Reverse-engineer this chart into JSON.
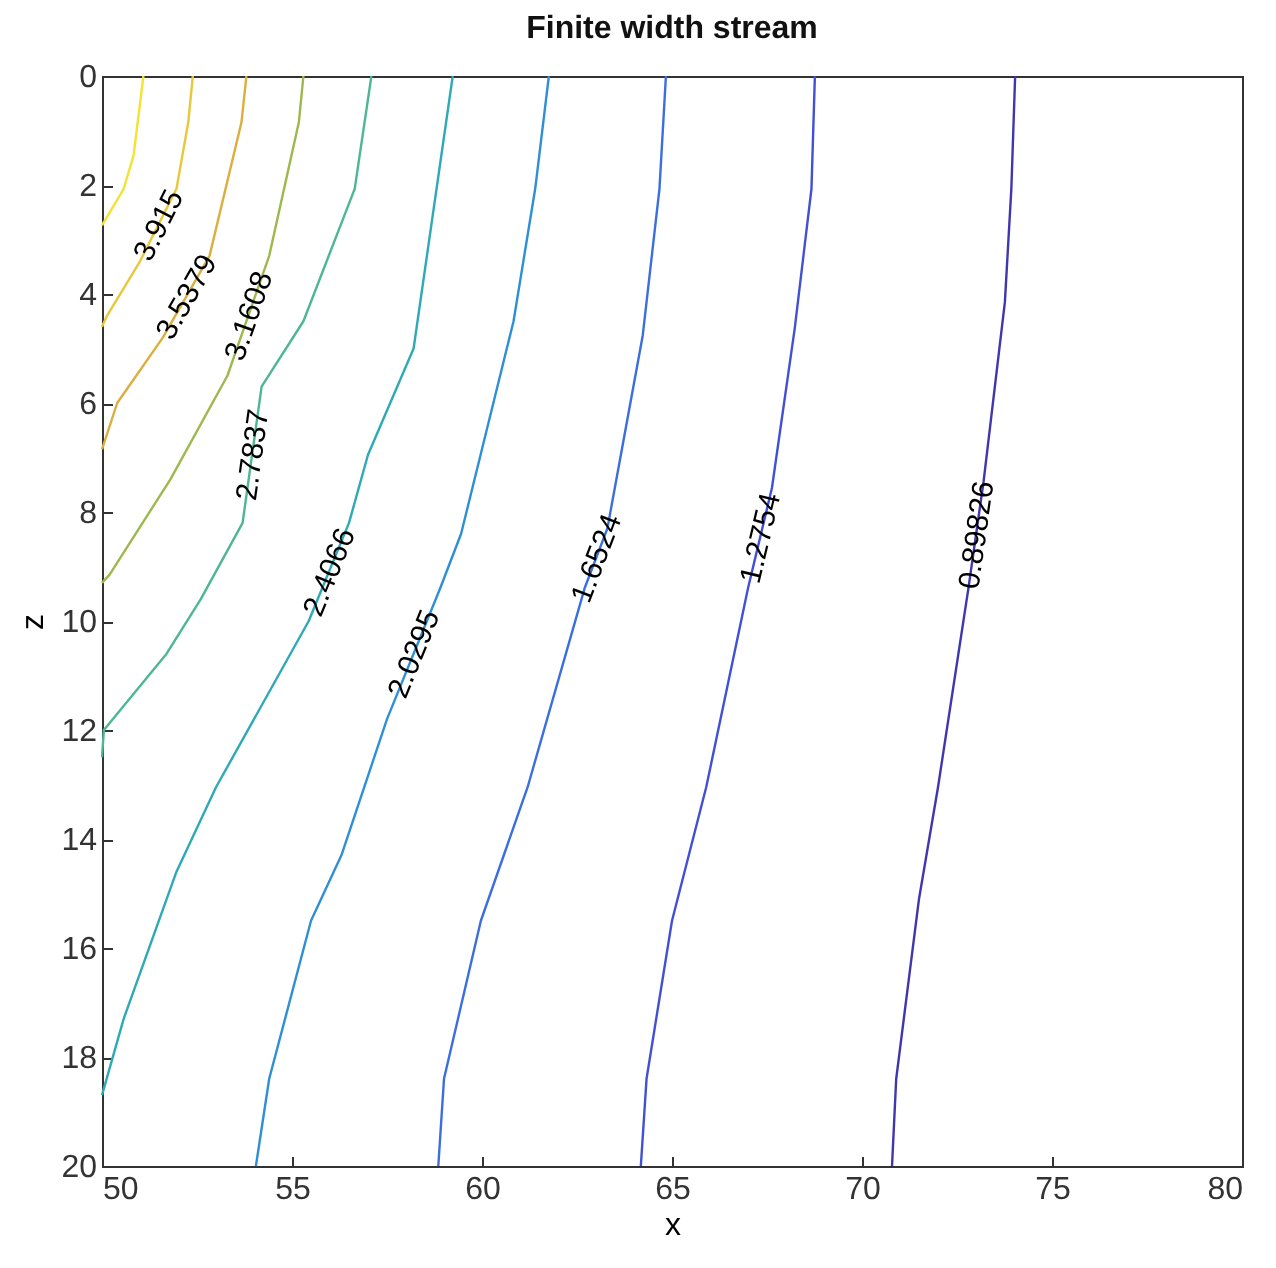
{
  "chart_data": {
    "type": "line",
    "title": "Finite width stream",
    "xlabel": "x",
    "ylabel": "z",
    "xlim": [
      50,
      80
    ],
    "ylim": [
      20,
      0
    ],
    "xticks": [
      50,
      55,
      60,
      65,
      70,
      75,
      80
    ],
    "yticks": [
      0,
      2,
      4,
      6,
      8,
      10,
      12,
      14,
      16,
      18,
      20
    ],
    "grid": false,
    "legend": false,
    "marker": "none",
    "line_style": "solid",
    "series": [
      {
        "color": "#f2e335",
        "x": [
          51.09,
          50.83,
          50.57,
          50
        ],
        "values": [
          0,
          1.46,
          2.07,
          2.74
        ]
      },
      {
        "name": "3.915",
        "color": "#e8c83a",
        "x": [
          52.39,
          52.27,
          51.96,
          51.0,
          50.13,
          50
        ],
        "values": [
          0,
          0.85,
          2.07,
          3.4,
          4.4,
          4.6
        ]
      },
      {
        "name": "3.5379",
        "color": "#dcae3e",
        "x": [
          53.8,
          53.67,
          52.83,
          51.6,
          50.4,
          50
        ],
        "values": [
          0,
          0.85,
          3.3,
          4.8,
          6.0,
          6.85
        ]
      },
      {
        "name": "3.1608",
        "color": "#9db84c",
        "x": [
          55.3,
          55.18,
          54.4,
          53.3,
          51.8,
          50.2,
          50
        ],
        "values": [
          0,
          0.85,
          3.3,
          5.5,
          7.4,
          9.15,
          9.3
        ]
      },
      {
        "name": "2.7837",
        "color": "#4db792",
        "x": [
          57.09,
          56.65,
          55.3,
          54.2,
          53.7,
          52.6,
          51.7,
          50.05,
          50
        ],
        "values": [
          0,
          2.07,
          4.5,
          5.7,
          8.2,
          9.6,
          10.6,
          12,
          12.5
        ]
      },
      {
        "name": "2.4066",
        "color": "#2ea9b6",
        "x": [
          59.23,
          58.2,
          57.0,
          56.5,
          55.44,
          53.0,
          51.96,
          50.57,
          50
        ],
        "values": [
          0,
          5,
          6.95,
          8.2,
          10,
          13.05,
          14.6,
          17.3,
          18.7
        ]
      },
      {
        "name": "2.0295",
        "color": "#2f8fd6",
        "x": [
          61.76,
          61.4,
          60.83,
          59.45,
          58.9,
          57.5,
          56.3,
          55.5,
          54.4,
          54.05
        ],
        "values": [
          0,
          2.07,
          4.5,
          8.4,
          9.4,
          11.8,
          14.3,
          15.5,
          18.4,
          20
        ]
      },
      {
        "name": "1.6524",
        "color": "#3b6ee0",
        "x": [
          64.84,
          64.67,
          64.23,
          63.3,
          62.7,
          61.2,
          59.97,
          59.0,
          58.85
        ],
        "values": [
          0,
          2.07,
          4.76,
          8.3,
          9.4,
          13.05,
          15.5,
          18.4,
          20
        ]
      },
      {
        "name": "1.2754",
        "color": "#4150d6",
        "x": [
          68.76,
          68.67,
          68.23,
          67.63,
          67.0,
          65.9,
          65.0,
          64.33,
          64.18
        ],
        "values": [
          0,
          2.07,
          4.63,
          7.56,
          9.4,
          13.05,
          15.5,
          18.4,
          20
        ]
      },
      {
        "name": "0.89826",
        "color": "#3f36b0",
        "x": [
          74.03,
          73.93,
          73.76,
          73.2,
          72.8,
          72.0,
          71.5,
          70.9,
          70.79
        ],
        "values": [
          0,
          2.07,
          4.15,
          7.44,
          9.4,
          13.05,
          15.1,
          18.4,
          20
        ]
      }
    ]
  }
}
